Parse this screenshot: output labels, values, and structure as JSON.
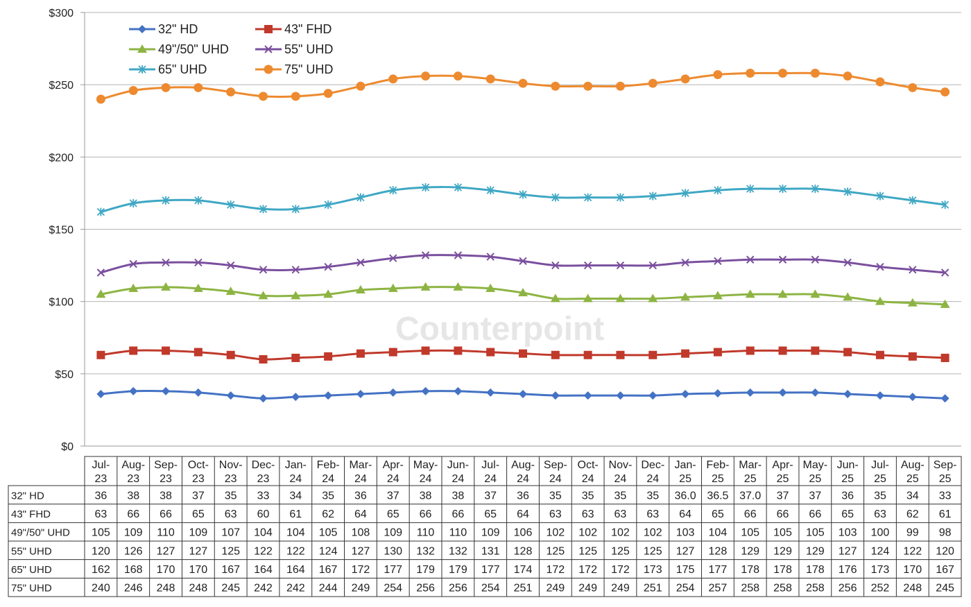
{
  "watermark": "Counterpoint",
  "chart_data": {
    "type": "line",
    "title": "",
    "xlabel": "",
    "ylabel": "",
    "ylim": [
      0,
      300
    ],
    "y_ticks": [
      "$0",
      "$50",
      "$100",
      "$150",
      "$200",
      "$250",
      "$300"
    ],
    "y_tick_values": [
      0,
      50,
      100,
      150,
      200,
      250,
      300
    ],
    "grid": true,
    "legend_position": "top-left",
    "categories": [
      [
        "Jul-",
        "23"
      ],
      [
        "Aug-",
        "23"
      ],
      [
        "Sep-",
        "23"
      ],
      [
        "Oct-",
        "23"
      ],
      [
        "Nov-",
        "23"
      ],
      [
        "Dec-",
        "23"
      ],
      [
        "Jan-",
        "24"
      ],
      [
        "Feb-",
        "24"
      ],
      [
        "Mar-",
        "24"
      ],
      [
        "Apr-",
        "24"
      ],
      [
        "May-",
        "24"
      ],
      [
        "Jun-",
        "24"
      ],
      [
        "Jul-",
        "24"
      ],
      [
        "Aug-",
        "24"
      ],
      [
        "Sep-",
        "24"
      ],
      [
        "Oct-",
        "24"
      ],
      [
        "Nov-",
        "24"
      ],
      [
        "Dec-",
        "24"
      ],
      [
        "Jan-",
        "25"
      ],
      [
        "Feb-",
        "25"
      ],
      [
        "Mar-",
        "25"
      ],
      [
        "Apr-",
        "25"
      ],
      [
        "May-",
        "25"
      ],
      [
        "Jun-",
        "25"
      ],
      [
        "Jul-",
        "25"
      ],
      [
        "Aug-",
        "25"
      ],
      [
        "Sep-",
        "25"
      ]
    ],
    "series": [
      {
        "name": "32\" HD",
        "color": "#4472c4",
        "marker": "diamond",
        "values": [
          36,
          38,
          38,
          37,
          35,
          33,
          34,
          35,
          36,
          37,
          38,
          38,
          37,
          36,
          35,
          35,
          35,
          35,
          36.0,
          36.5,
          37.0,
          37,
          37,
          36,
          35,
          34,
          33
        ],
        "labels": [
          "36",
          "38",
          "38",
          "37",
          "35",
          "33",
          "34",
          "35",
          "36",
          "37",
          "38",
          "38",
          "37",
          "36",
          "35",
          "35",
          "35",
          "35",
          "36.0",
          "36.5",
          "37.0",
          "37",
          "37",
          "36",
          "35",
          "34",
          "33"
        ]
      },
      {
        "name": "43\" FHD",
        "color": "#c0392b",
        "marker": "square",
        "values": [
          63,
          66,
          66,
          65,
          63,
          60,
          61,
          62,
          64,
          65,
          66,
          66,
          65,
          64,
          63,
          63,
          63,
          63,
          64,
          65,
          66,
          66,
          66,
          65,
          63,
          62,
          61
        ],
        "labels": [
          "63",
          "66",
          "66",
          "65",
          "63",
          "60",
          "61",
          "62",
          "64",
          "65",
          "66",
          "66",
          "65",
          "64",
          "63",
          "63",
          "63",
          "63",
          "64",
          "65",
          "66",
          "66",
          "66",
          "65",
          "63",
          "62",
          "61"
        ]
      },
      {
        "name": "49\"/50\" UHD",
        "color": "#8db443",
        "marker": "triangle",
        "values": [
          105,
          109,
          110,
          109,
          107,
          104,
          104,
          105,
          108,
          109,
          110,
          110,
          109,
          106,
          102,
          102,
          102,
          102,
          103,
          104,
          105,
          105,
          105,
          103,
          100,
          99,
          98
        ],
        "labels": [
          "105",
          "109",
          "110",
          "109",
          "107",
          "104",
          "104",
          "105",
          "108",
          "109",
          "110",
          "110",
          "109",
          "106",
          "102",
          "102",
          "102",
          "102",
          "103",
          "104",
          "105",
          "105",
          "105",
          "103",
          "100",
          "99",
          "98"
        ]
      },
      {
        "name": "55\" UHD",
        "color": "#7a4f9e",
        "marker": "x",
        "values": [
          120,
          126,
          127,
          127,
          125,
          122,
          122,
          124,
          127,
          130,
          132,
          132,
          131,
          128,
          125,
          125,
          125,
          125,
          127,
          128,
          129,
          129,
          129,
          127,
          124,
          122,
          120
        ],
        "labels": [
          "120",
          "126",
          "127",
          "127",
          "125",
          "122",
          "122",
          "124",
          "127",
          "130",
          "132",
          "132",
          "131",
          "128",
          "125",
          "125",
          "125",
          "125",
          "127",
          "128",
          "129",
          "129",
          "129",
          "127",
          "124",
          "122",
          "120"
        ]
      },
      {
        "name": "65\" UHD",
        "color": "#3fa7c4",
        "marker": "star",
        "values": [
          162,
          168,
          170,
          170,
          167,
          164,
          164,
          167,
          172,
          177,
          179,
          179,
          177,
          174,
          172,
          172,
          172,
          173,
          175,
          177,
          178,
          178,
          178,
          176,
          173,
          170,
          167
        ],
        "labels": [
          "162",
          "168",
          "170",
          "170",
          "167",
          "164",
          "164",
          "167",
          "172",
          "177",
          "179",
          "179",
          "177",
          "174",
          "172",
          "172",
          "172",
          "173",
          "175",
          "177",
          "178",
          "178",
          "178",
          "176",
          "173",
          "170",
          "167"
        ]
      },
      {
        "name": "75\" UHD",
        "color": "#ed8a2f",
        "marker": "circle",
        "values": [
          240,
          246,
          248,
          248,
          245,
          242,
          242,
          244,
          249,
          254,
          256,
          256,
          254,
          251,
          249,
          249,
          249,
          251,
          254,
          257,
          258,
          258,
          258,
          256,
          252,
          248,
          245
        ],
        "labels": [
          "240",
          "246",
          "248",
          "248",
          "245",
          "242",
          "242",
          "244",
          "249",
          "254",
          "256",
          "256",
          "254",
          "251",
          "249",
          "249",
          "249",
          "251",
          "254",
          "257",
          "258",
          "258",
          "258",
          "256",
          "252",
          "248",
          "245"
        ]
      }
    ]
  }
}
